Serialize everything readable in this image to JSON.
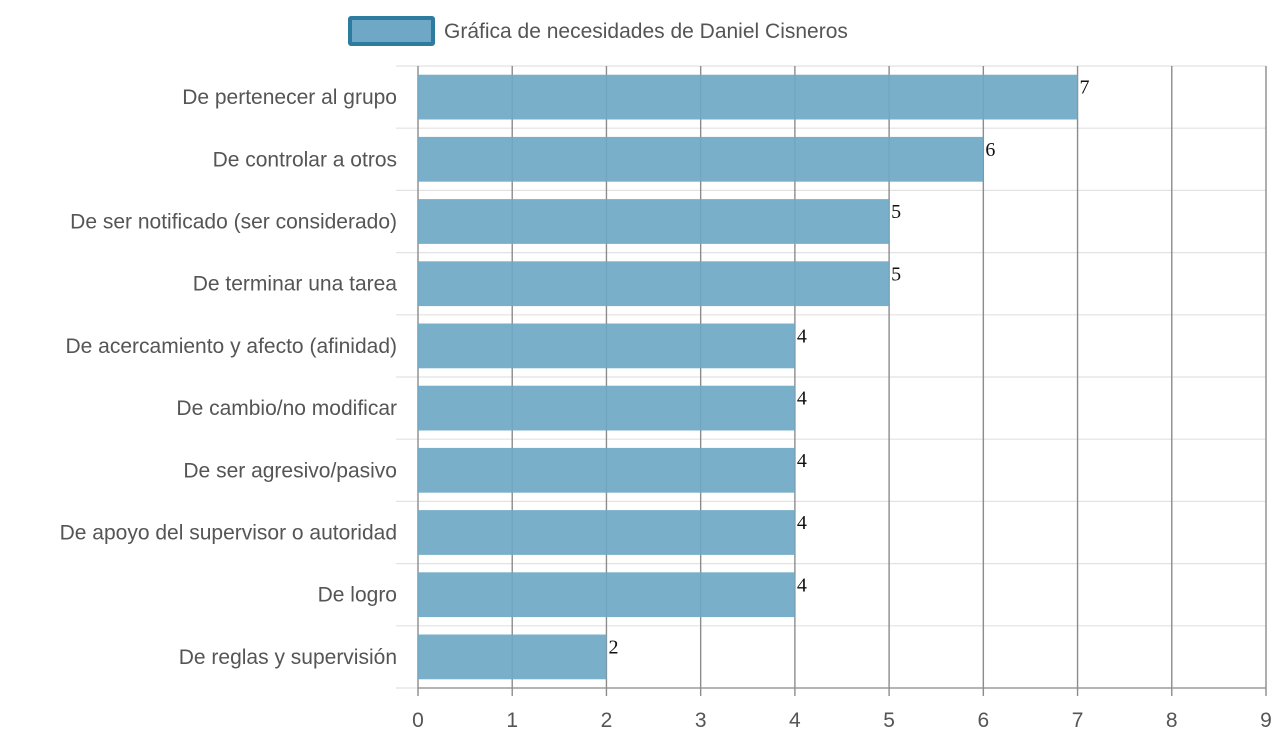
{
  "chart_data": {
    "type": "bar",
    "orientation": "horizontal",
    "legend": {
      "label": "Gráfica de necesidades de Daniel Cisneros",
      "placement": "top-center"
    },
    "categories": [
      "De pertenecer al grupo",
      "De controlar a otros",
      "De ser notificado (ser considerado)",
      "De terminar una tarea",
      "De acercamiento y afecto (afinidad)",
      "De cambio/no modificar",
      "De ser agresivo/pasivo",
      "De apoyo del supervisor o autoridad",
      "De logro",
      "De reglas y supervisión"
    ],
    "series": [
      {
        "name": "Gráfica de necesidades de Daniel Cisneros",
        "values": [
          7,
          6,
          5,
          5,
          4,
          4,
          4,
          4,
          4,
          2
        ]
      }
    ],
    "xlim": [
      0,
      9
    ],
    "x_ticks": [
      "0",
      "1",
      "2",
      "3",
      "4",
      "5",
      "6",
      "7",
      "8",
      "9"
    ],
    "grid": true,
    "data_labels": true,
    "colors": {
      "bar_fill": "#6fa8c6",
      "bar_border": "#2e7ba0",
      "grid": "#8c8c8c",
      "text": "#555555"
    }
  }
}
